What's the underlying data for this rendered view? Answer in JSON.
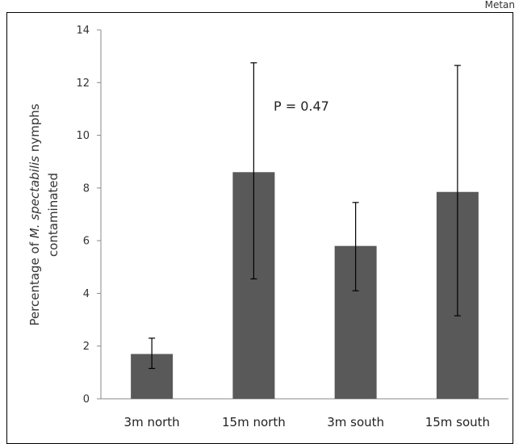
{
  "corner_text": "Metan",
  "chart_data": {
    "type": "bar",
    "categories": [
      "3m north",
      "15m north",
      "3m south",
      "15m south"
    ],
    "values": [
      1.7,
      8.6,
      5.8,
      7.85
    ],
    "error_high": [
      2.3,
      12.75,
      7.45,
      12.65
    ],
    "error_low": [
      1.15,
      4.55,
      4.1,
      3.15
    ],
    "ylabel_prefix": "Percentage of ",
    "ylabel_italic": "M. spectabilis",
    "ylabel_suffix": " nymphs",
    "ylabel_line2": "contaminated",
    "ylim": [
      0,
      14
    ],
    "yticks": [
      0,
      2,
      4,
      6,
      8,
      10,
      12,
      14
    ],
    "annotation": "P = 0.47",
    "bar_color": "#595959",
    "grid": false,
    "legend": "none"
  }
}
